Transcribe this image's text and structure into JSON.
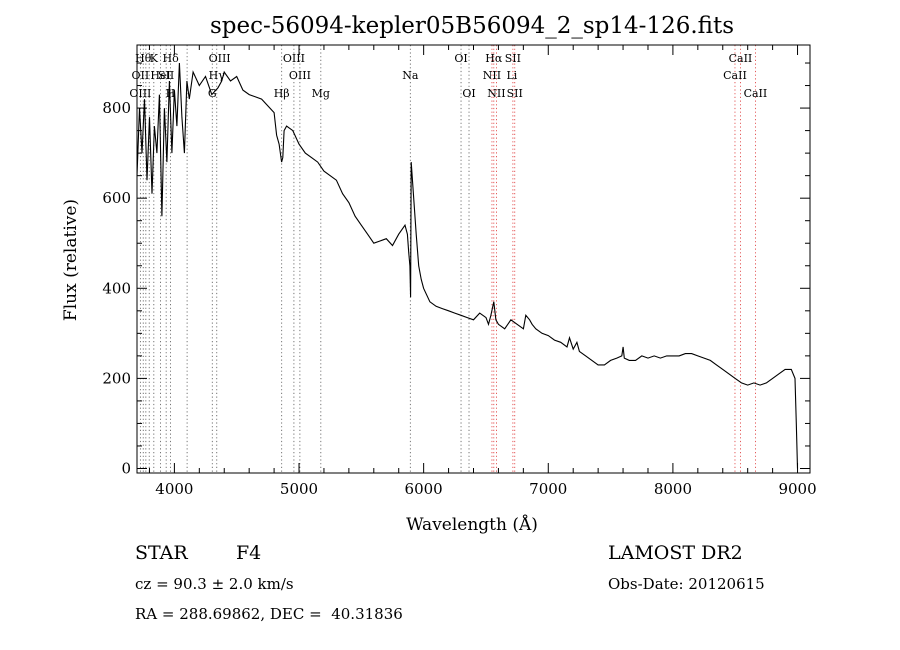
{
  "chart_data": {
    "type": "line",
    "title": "spec-56094-kepler05B56094_2_sp14-126.fits",
    "xlabel": "Wavelength (Å)",
    "ylabel": "Flux (relative)",
    "xlim": [
      3700,
      9100
    ],
    "ylim": [
      -10,
      940
    ],
    "xticks": [
      4000,
      5000,
      6000,
      7000,
      8000,
      9000
    ],
    "yticks": [
      0,
      200,
      400,
      600,
      800
    ],
    "grid": false,
    "series": [
      {
        "color": "#000000",
        "x": [
          3700,
          3720,
          3740,
          3760,
          3780,
          3800,
          3820,
          3840,
          3860,
          3880,
          3900,
          3920,
          3940,
          3960,
          3980,
          4000,
          4020,
          4040,
          4060,
          4080,
          4100,
          4120,
          4150,
          4200,
          4250,
          4300,
          4350,
          4380,
          4400,
          4450,
          4500,
          4550,
          4600,
          4700,
          4800,
          4820,
          4840,
          4860,
          4870,
          4880,
          4900,
          4950,
          5000,
          5050,
          5100,
          5150,
          5200,
          5250,
          5300,
          5350,
          5400,
          5450,
          5500,
          5550,
          5600,
          5650,
          5700,
          5750,
          5800,
          5850,
          5870,
          5880,
          5890,
          5895,
          5900,
          5920,
          5940,
          5960,
          5980,
          6000,
          6050,
          6100,
          6150,
          6200,
          6250,
          6300,
          6350,
          6400,
          6450,
          6500,
          6520,
          6540,
          6563,
          6580,
          6600,
          6650,
          6700,
          6750,
          6800,
          6820,
          6850,
          6870,
          6900,
          6950,
          7000,
          7050,
          7100,
          7150,
          7170,
          7200,
          7230,
          7250,
          7300,
          7350,
          7400,
          7450,
          7500,
          7550,
          7590,
          7600,
          7610,
          7650,
          7700,
          7750,
          7800,
          7850,
          7900,
          7950,
          8000,
          8050,
          8100,
          8150,
          8200,
          8250,
          8300,
          8350,
          8400,
          8450,
          8500,
          8550,
          8600,
          8650,
          8700,
          8750,
          8800,
          8850,
          8900,
          8950,
          8980,
          8990,
          9000
        ],
        "y": [
          650,
          800,
          700,
          820,
          640,
          780,
          610,
          760,
          700,
          830,
          560,
          800,
          680,
          860,
          700,
          840,
          760,
          900,
          780,
          700,
          860,
          820,
          880,
          850,
          870,
          830,
          845,
          860,
          880,
          860,
          870,
          840,
          830,
          820,
          790,
          740,
          720,
          680,
          690,
          750,
          760,
          750,
          720,
          700,
          690,
          680,
          660,
          650,
          640,
          610,
          590,
          560,
          540,
          520,
          500,
          505,
          510,
          495,
          520,
          540,
          520,
          480,
          450,
          380,
          680,
          600,
          520,
          450,
          420,
          400,
          370,
          360,
          355,
          350,
          345,
          340,
          335,
          330,
          345,
          335,
          320,
          340,
          370,
          330,
          320,
          310,
          330,
          320,
          310,
          340,
          330,
          320,
          310,
          300,
          295,
          285,
          280,
          270,
          290,
          265,
          280,
          260,
          250,
          240,
          230,
          230,
          240,
          245,
          250,
          270,
          245,
          240,
          240,
          250,
          245,
          250,
          245,
          250,
          250,
          250,
          255,
          255,
          250,
          245,
          240,
          230,
          220,
          210,
          200,
          190,
          185,
          190,
          185,
          190,
          200,
          210,
          220,
          220,
          200,
          100,
          0
        ]
      }
    ],
    "line_labels": [
      {
        "x": 3750,
        "text": "Hθ",
        "row": 1
      },
      {
        "x": 3835,
        "text": "K",
        "row": 1
      },
      {
        "x": 3970,
        "text": "Hδ",
        "row": 1
      },
      {
        "x": 4363,
        "text": "OIII",
        "row": 1
      },
      {
        "x": 4959,
        "text": "OIII",
        "row": 1
      },
      {
        "x": 6300,
        "text": "OI",
        "row": 1
      },
      {
        "x": 6563,
        "text": "Hα",
        "row": 1
      },
      {
        "x": 6716,
        "text": "SII",
        "row": 1
      },
      {
        "x": 8542,
        "text": "CaII",
        "row": 1
      },
      {
        "x": 3727,
        "text": "OII",
        "row": 2
      },
      {
        "x": 3889,
        "text": "HeI",
        "row": 2
      },
      {
        "x": 3934,
        "text": "SII",
        "row": 2
      },
      {
        "x": 4340,
        "text": "Hγ",
        "row": 2
      },
      {
        "x": 5007,
        "text": "OIII",
        "row": 2
      },
      {
        "x": 5893,
        "text": "Na",
        "row": 2
      },
      {
        "x": 6548,
        "text": "NII",
        "row": 2
      },
      {
        "x": 6708,
        "text": "Li",
        "row": 2
      },
      {
        "x": 8498,
        "text": "CaII",
        "row": 2
      },
      {
        "x": 3727,
        "text": "OIII",
        "row": 3
      },
      {
        "x": 3968,
        "text": "H",
        "row": 3
      },
      {
        "x": 4304,
        "text": "G",
        "row": 3
      },
      {
        "x": 4861,
        "text": "Hβ",
        "row": 3
      },
      {
        "x": 5175,
        "text": "Mg",
        "row": 3
      },
      {
        "x": 6364,
        "text": "OI",
        "row": 3
      },
      {
        "x": 6584,
        "text": "NII",
        "row": 3
      },
      {
        "x": 6731,
        "text": "SII",
        "row": 3
      },
      {
        "x": 8662,
        "text": "CaII",
        "row": 3
      }
    ],
    "black_lines": [
      3727,
      3750,
      3771,
      3798,
      3835,
      3889,
      3934,
      3968,
      4102,
      4304,
      4340,
      4861,
      4959,
      5007,
      5175,
      5893,
      6300,
      6364
    ],
    "red_lines": [
      6548,
      6563,
      6584,
      6716,
      6731,
      8498,
      8542,
      8662
    ]
  },
  "footer": {
    "object_class": "STAR",
    "subclass": "F4",
    "cz": "cz = 90.3 ± 2.0 km/s",
    "coords": "RA = 288.69862, DEC =  40.31836",
    "survey": "LAMOST DR2",
    "obs_date": "Obs-Date: 20120615"
  }
}
